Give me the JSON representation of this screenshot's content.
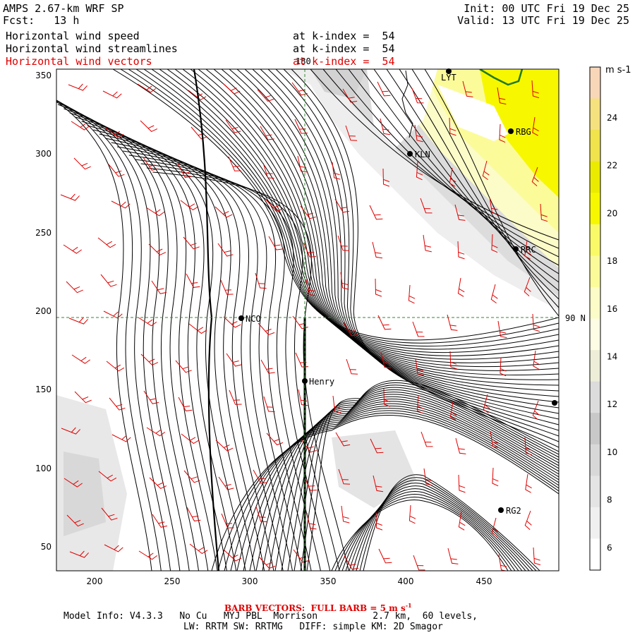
{
  "header": {
    "model": "AMPS 2.67-km WRF SP",
    "forecast": "Fcst:   13 h",
    "init": "Init: 00 UTC Fri 19 Dec 25",
    "valid": "Valid: 13 UTC Fri 19 Dec 25",
    "fields": [
      {
        "label": "Horizontal wind speed",
        "level": "at k-index =  54"
      },
      {
        "label": "Horizontal wind streamlines",
        "level": "at k-index =  54"
      },
      {
        "label": "Horizontal wind vectors",
        "level": "at k-index =  54"
      }
    ]
  },
  "map": {
    "lon_label_top": "180",
    "lat_label_right": "90 N",
    "x_ticks": [
      "200",
      "250",
      "300",
      "350",
      "400",
      "450"
    ],
    "y_ticks": [
      "350",
      "300",
      "250",
      "200",
      "150",
      "100",
      "50"
    ],
    "stations": [
      {
        "name": "LYT"
      },
      {
        "name": "RBG"
      },
      {
        "name": "KLN"
      },
      {
        "name": "RRC"
      },
      {
        "name": "NCO"
      },
      {
        "name": "Henry"
      },
      {
        "name": "RG2"
      },
      {
        "name": ""
      }
    ],
    "colors": {
      "streamline": "#000000",
      "barb": "#e00000",
      "gridline": "#2e8b2e",
      "coast": "#1e7a1e"
    }
  },
  "colorbar": {
    "units": "m s-1",
    "labels": [
      "24",
      "22",
      "20",
      "18",
      "16",
      "14",
      "12",
      "10",
      "8",
      "6"
    ],
    "colors": [
      "#f8d6b8",
      "#f5e17e",
      "#f0e34b",
      "#ebeb00",
      "#f7f700",
      "#fafa68",
      "#fbfb9a",
      "#fcfcc8",
      "#fdfde6",
      "#eeeed8",
      "#dcdcdc",
      "#c8c8c8",
      "#d8d8d8",
      "#e4e4e4",
      "#f0f0f0",
      "#ffffff"
    ]
  },
  "footer": {
    "barb_note": "BARB VECTORS:  FULL BARB = 5 m s",
    "barb_exp": "-1",
    "line1": "Model Info: V4.3.3   No Cu   MYJ PBL  Morrison          2.7 km,  60 levels,",
    "line2": "LW: RRTM SW: RRTMG   DIFF: simple KM: 2D Smagor"
  }
}
